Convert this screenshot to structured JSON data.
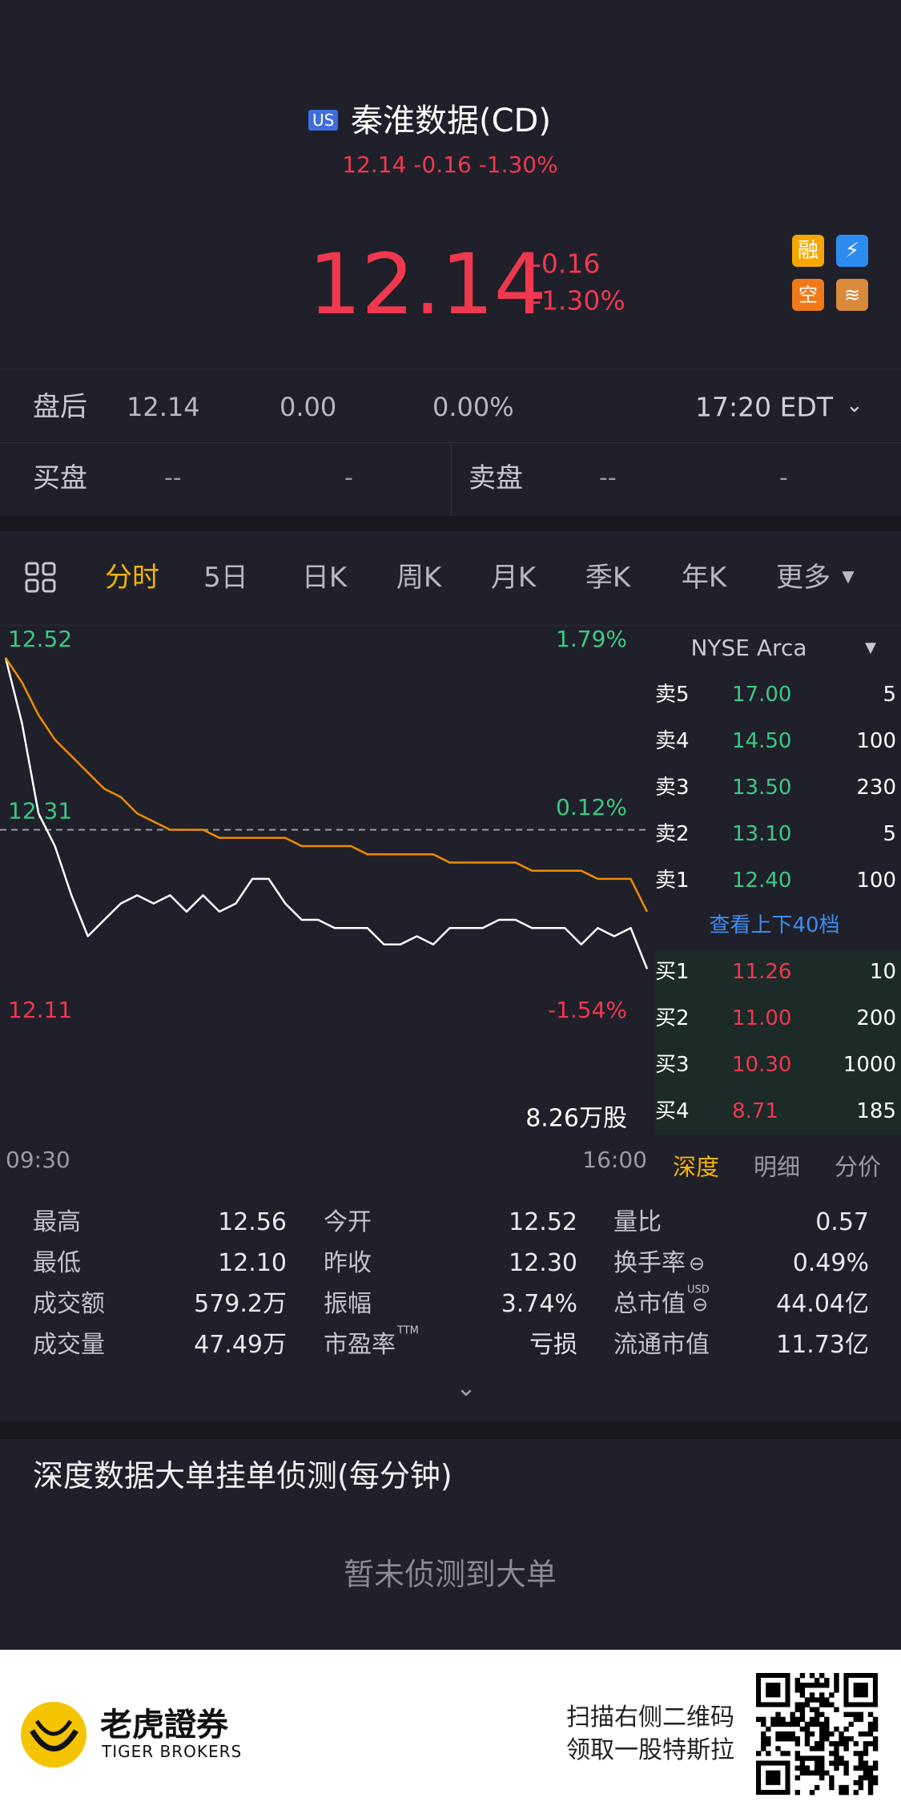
{
  "header": {
    "badge": "US",
    "title": "秦淮数据(CD)",
    "quote": "12.14 -0.16 -1.30%"
  },
  "price": {
    "last": "12.14",
    "change": "-0.16",
    "change_pct": "-1.30%",
    "icons": [
      "融",
      "空"
    ]
  },
  "after_hours": {
    "label": "盘后",
    "price": "12.14",
    "change": "0.00",
    "change_pct": "0.00%",
    "time": "17:20 EDT"
  },
  "bid_ask": {
    "bid_label": "买盘",
    "bid_price": "--",
    "bid_size": "-",
    "ask_label": "卖盘",
    "ask_price": "--",
    "ask_size": "-"
  },
  "tabs": [
    "分时",
    "5日",
    "日K",
    "周K",
    "月K",
    "季K",
    "年K",
    "更多"
  ],
  "active_tab": 0,
  "chart_data": {
    "type": "line",
    "x": [
      0,
      10,
      20,
      30,
      40,
      50,
      60,
      70,
      80,
      90,
      100,
      110,
      120,
      130,
      140,
      150,
      160,
      170,
      180,
      190,
      200,
      210,
      220,
      230,
      240,
      250,
      260,
      270,
      280,
      290,
      300,
      310,
      320,
      330,
      340,
      350,
      360,
      370,
      380,
      390
    ],
    "xlim": [
      0,
      390
    ],
    "xticks": [
      {
        "value": 0,
        "label": "09:30"
      },
      {
        "value": 390,
        "label": "16:00"
      }
    ],
    "ylim": [
      12.11,
      12.52
    ],
    "yticks": [
      12.52,
      12.31,
      12.11
    ],
    "y2lim": [
      -1.54,
      1.79
    ],
    "y2ticks": [
      {
        "value": 1.79,
        "label": "1.79%"
      },
      {
        "value": 0.12,
        "label": "0.12%"
      },
      {
        "value": -1.54,
        "label": "-1.54%"
      }
    ],
    "series": [
      {
        "color": "#ffffff",
        "values": [
          12.52,
          12.44,
          12.33,
          12.29,
          12.23,
          12.18,
          12.2,
          12.22,
          12.23,
          12.22,
          12.23,
          12.21,
          12.23,
          12.21,
          12.22,
          12.25,
          12.25,
          12.22,
          12.2,
          12.2,
          12.19,
          12.19,
          12.19,
          12.17,
          12.17,
          12.18,
          12.17,
          12.19,
          12.19,
          12.19,
          12.2,
          12.2,
          12.19,
          12.19,
          12.19,
          12.17,
          12.19,
          12.18,
          12.19,
          12.14
        ]
      },
      {
        "color": "#f08c00",
        "values": [
          12.52,
          12.49,
          12.45,
          12.42,
          12.4,
          12.38,
          12.36,
          12.35,
          12.33,
          12.32,
          12.31,
          12.31,
          12.31,
          12.3,
          12.3,
          12.3,
          12.3,
          12.3,
          12.29,
          12.29,
          12.29,
          12.29,
          12.28,
          12.28,
          12.28,
          12.28,
          12.28,
          12.27,
          12.27,
          12.27,
          12.27,
          12.27,
          12.26,
          12.26,
          12.26,
          12.26,
          12.25,
          12.25,
          12.25,
          12.21
        ]
      }
    ],
    "volume_label": "8.26万股"
  },
  "order_book": {
    "exchange": "NYSE Arca",
    "asks": [
      {
        "label": "卖5",
        "price": "17.00",
        "size": "5"
      },
      {
        "label": "卖4",
        "price": "14.50",
        "size": "100"
      },
      {
        "label": "卖3",
        "price": "13.50",
        "size": "230"
      },
      {
        "label": "卖2",
        "price": "13.10",
        "size": "5"
      },
      {
        "label": "卖1",
        "price": "12.40",
        "size": "100"
      }
    ],
    "more": "查看上下40档",
    "bids": [
      {
        "label": "买1",
        "price": "11.26",
        "size": "10"
      },
      {
        "label": "买2",
        "price": "11.00",
        "size": "200"
      },
      {
        "label": "买3",
        "price": "10.30",
        "size": "1000"
      },
      {
        "label": "买4",
        "price": "8.71",
        "size": "185"
      }
    ],
    "tabs": [
      "深度",
      "明细",
      "分价"
    ]
  },
  "stats": [
    [
      {
        "label": "最高",
        "value": "12.56"
      },
      {
        "label": "今开",
        "value": "12.52"
      },
      {
        "label": "量比",
        "value": "0.57"
      }
    ],
    [
      {
        "label": "最低",
        "value": "12.10"
      },
      {
        "label": "昨收",
        "value": "12.30"
      },
      {
        "label": "换手率",
        "value": "0.49%",
        "info": true
      }
    ],
    [
      {
        "label": "成交额",
        "value": "579.2万"
      },
      {
        "label": "振幅",
        "value": "3.74%"
      },
      {
        "label": "总市值",
        "sup": "USD",
        "value": "44.04亿",
        "info": true
      }
    ],
    [
      {
        "label": "成交量",
        "value": "47.49万"
      },
      {
        "label": "市盈率",
        "sup": "TTM",
        "value": "亏损"
      },
      {
        "label": "流通市值",
        "value": "11.73亿"
      }
    ]
  ],
  "detection": {
    "title": "深度数据大单挂单侦测(每分钟)",
    "empty": "暂未侦测到大单"
  },
  "footer": {
    "brand": "老虎證券",
    "brand_en": "TIGER BROKERS",
    "promo": [
      "扫描右侧二维码",
      "领取一股特斯拉"
    ]
  }
}
